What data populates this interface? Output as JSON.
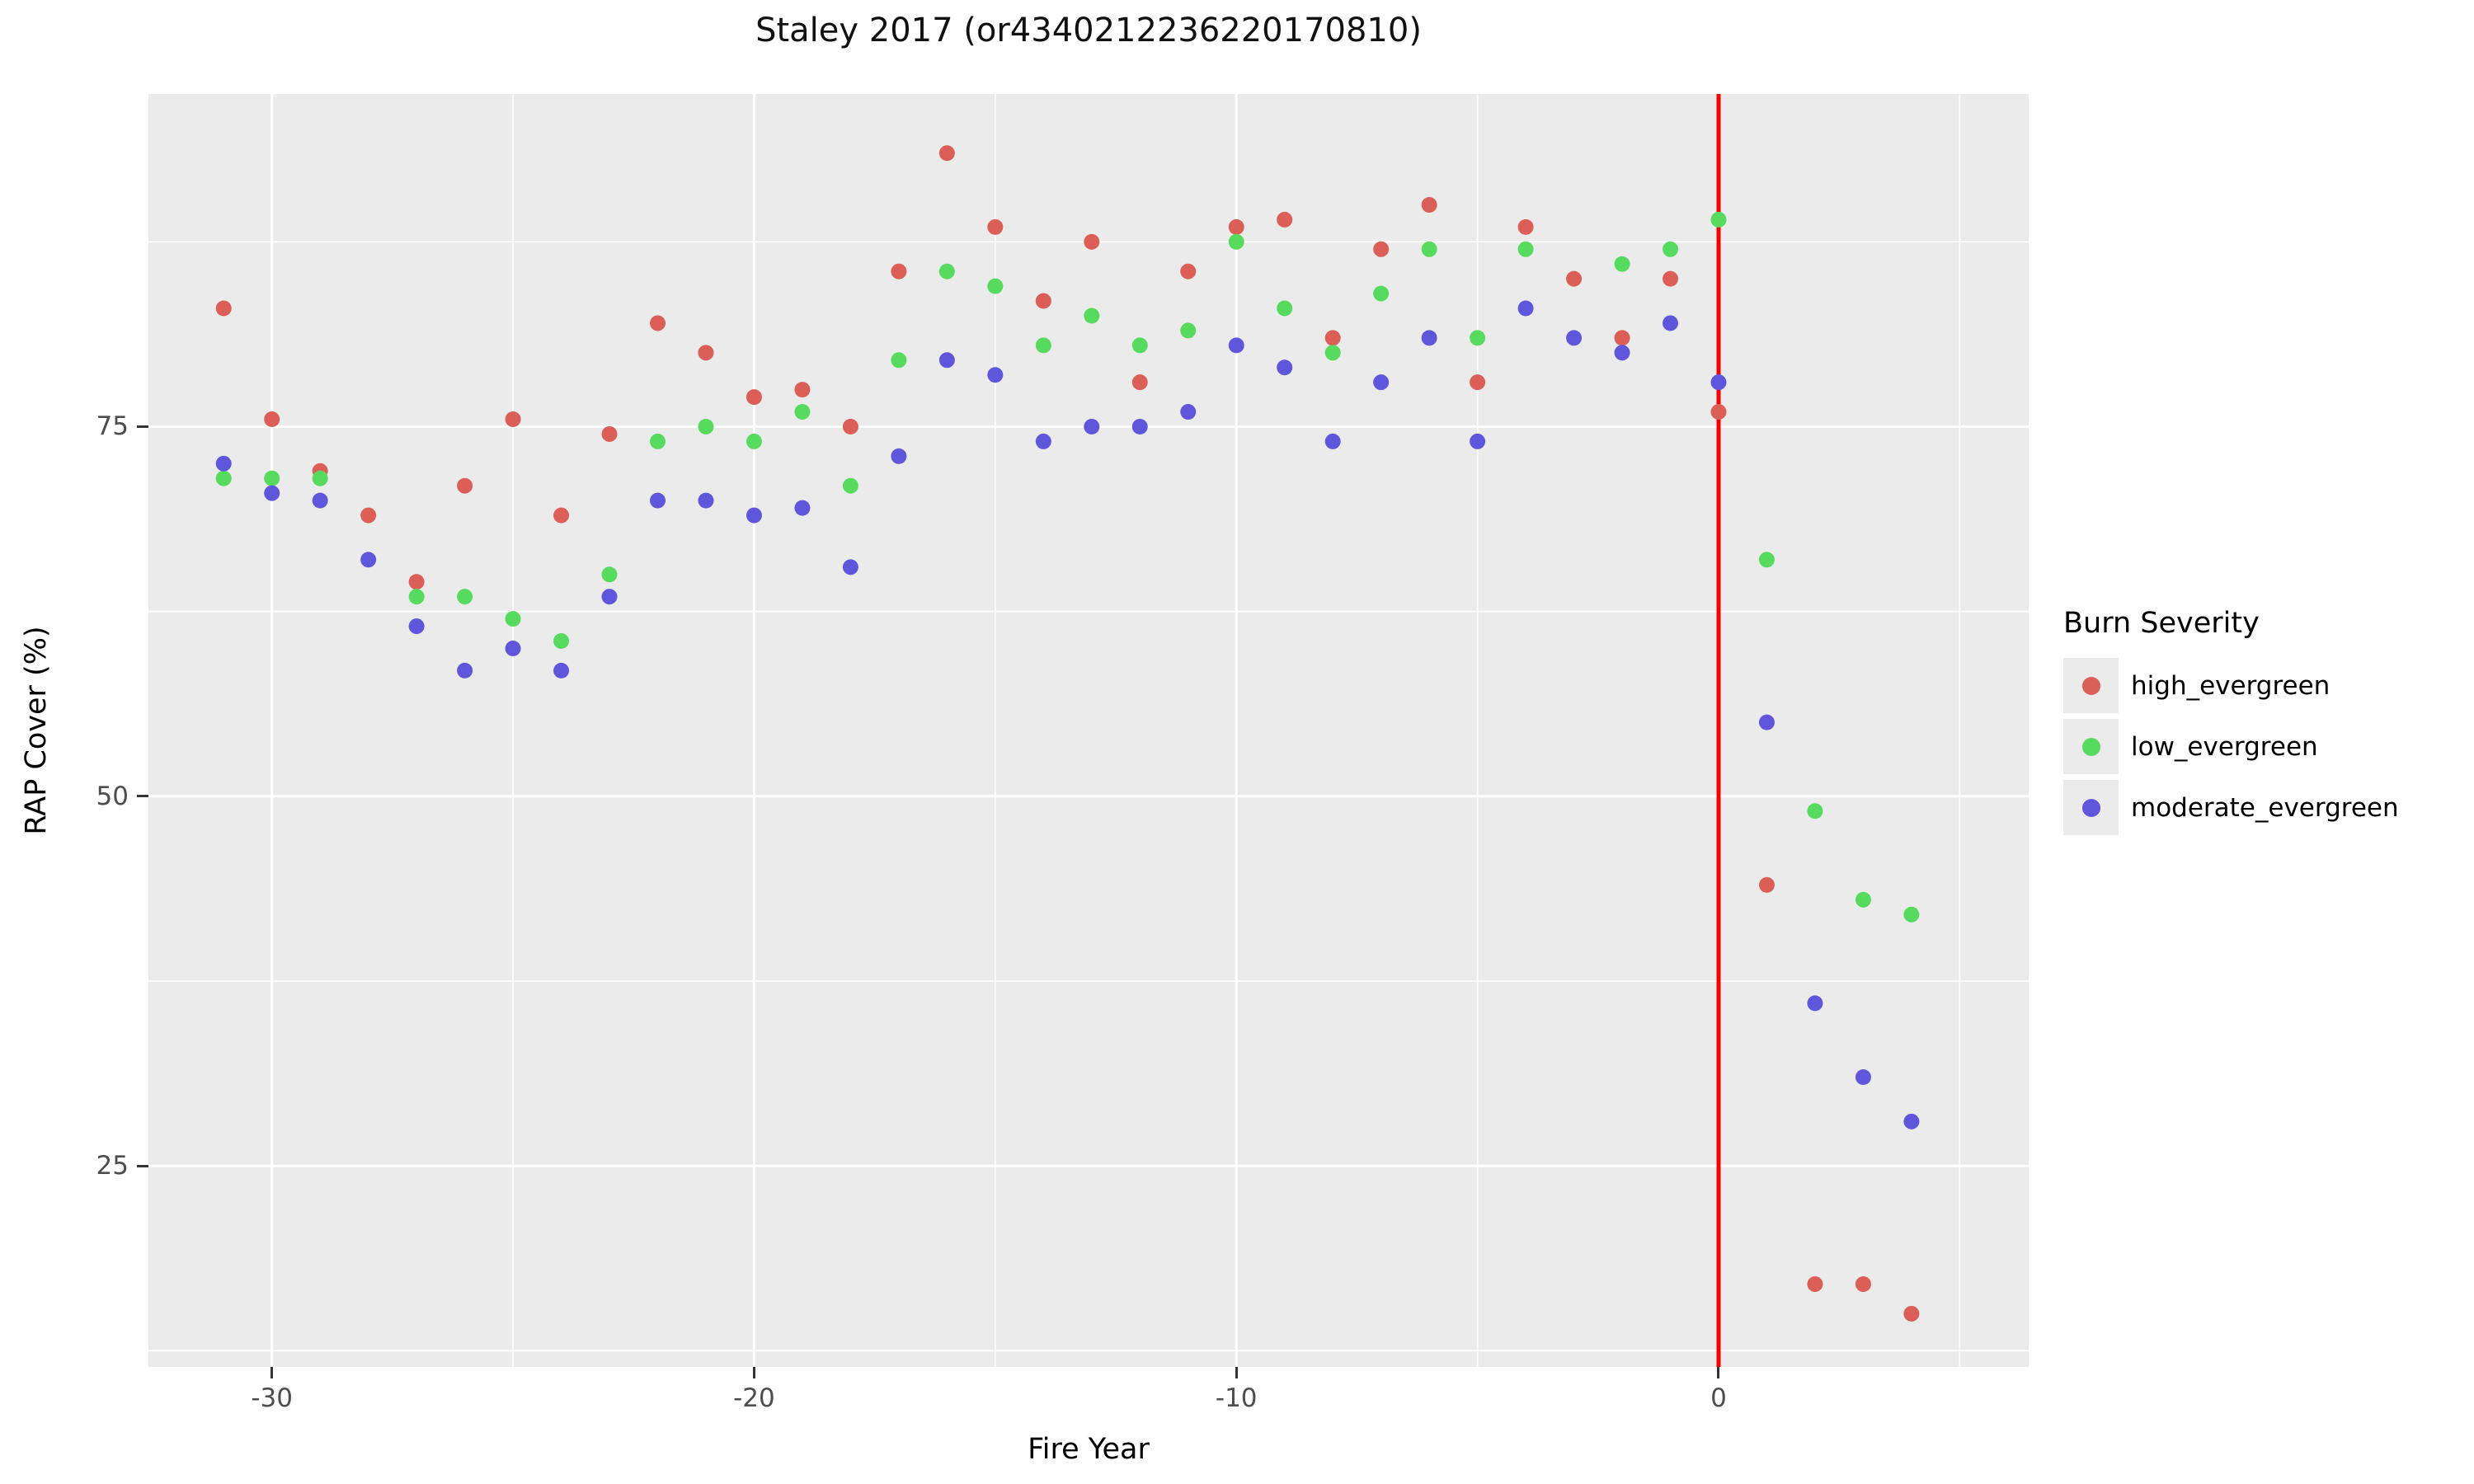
{
  "title": "Staley 2017 (or4340212236220170810)",
  "axes": {
    "xlabel": "Fire Year",
    "ylabel": "RAP Cover (%)"
  },
  "legend": {
    "title": "Burn Severity",
    "entries": [
      {
        "label": "high_evergreen",
        "color": "#db5f57"
      },
      {
        "label": "low_evergreen",
        "color": "#57db5f"
      },
      {
        "label": "moderate_evergreen",
        "color": "#5f57db"
      }
    ]
  },
  "colors": {
    "background": "#ffffff",
    "panel": "#ebebeb",
    "gridline": "#ffffff",
    "tick_mark": "#333333",
    "tick_label": "#4d4d4d",
    "fire_line": "#f40000"
  },
  "chart_data": {
    "type": "scatter",
    "title": "Staley 2017 (or4340212236220170810)",
    "xlabel": "Fire Year",
    "ylabel": "RAP Cover (%)",
    "xlim": [
      -32.56,
      6.43
    ],
    "ylim": [
      11.4,
      97.5
    ],
    "x_major_ticks": [
      -30,
      -20,
      -10,
      0
    ],
    "x_minor_gridlines": [
      -25,
      -15,
      -5,
      5
    ],
    "y_major_ticks": [
      75,
      50,
      25
    ],
    "y_minor_gridlines": [
      87.5,
      62.5,
      37.5,
      12.5
    ],
    "grid": "on",
    "legend_position": "right",
    "vline_x": 0,
    "point_radius_px": 9.5,
    "series": [
      {
        "name": "high_evergreen",
        "color": "#db5f57",
        "points": [
          [
            -31,
            83
          ],
          [
            -30,
            75.5
          ],
          [
            -29,
            72
          ],
          [
            -28,
            69
          ],
          [
            -27,
            64.5
          ],
          [
            -26,
            71
          ],
          [
            -25,
            75.5
          ],
          [
            -24,
            69
          ],
          [
            -23,
            74.5
          ],
          [
            -22,
            82
          ],
          [
            -21,
            80
          ],
          [
            -20,
            77
          ],
          [
            -19,
            77.5
          ],
          [
            -18,
            75
          ],
          [
            -17,
            85.5
          ],
          [
            -16,
            93.5
          ],
          [
            -15,
            88.5
          ],
          [
            -14,
            83.5
          ],
          [
            -13,
            87.5
          ],
          [
            -12,
            78
          ],
          [
            -11,
            85.5
          ],
          [
            -10,
            88.5
          ],
          [
            -9,
            89
          ],
          [
            -8,
            81
          ],
          [
            -7,
            87
          ],
          [
            -6,
            90
          ],
          [
            -5,
            78
          ],
          [
            -4,
            88.5
          ],
          [
            -3,
            85
          ],
          [
            -2,
            81
          ],
          [
            -1,
            85
          ],
          [
            0,
            76
          ],
          [
            1,
            44
          ],
          [
            2,
            17
          ],
          [
            3,
            17
          ],
          [
            4,
            15
          ]
        ]
      },
      {
        "name": "low_evergreen",
        "color": "#57db5f",
        "points": [
          [
            -31,
            71.5
          ],
          [
            -30,
            71.5
          ],
          [
            -29,
            71.5
          ],
          [
            -27,
            63.5
          ],
          [
            -26,
            63.5
          ],
          [
            -25,
            62
          ],
          [
            -24,
            60.5
          ],
          [
            -23,
            65
          ],
          [
            -22,
            74
          ],
          [
            -21,
            75
          ],
          [
            -20,
            74
          ],
          [
            -19,
            76
          ],
          [
            -18,
            71
          ],
          [
            -17,
            79.5
          ],
          [
            -16,
            85.5
          ],
          [
            -15,
            84.5
          ],
          [
            -14,
            80.5
          ],
          [
            -13,
            82.5
          ],
          [
            -12,
            80.5
          ],
          [
            -11,
            81.5
          ],
          [
            -10,
            87.5
          ],
          [
            -9,
            83
          ],
          [
            -8,
            80
          ],
          [
            -7,
            84
          ],
          [
            -6,
            87
          ],
          [
            -5,
            81
          ],
          [
            -4,
            87
          ],
          [
            -2,
            86
          ],
          [
            -1,
            87
          ],
          [
            0,
            89
          ],
          [
            1,
            66
          ],
          [
            2,
            49
          ],
          [
            3,
            43
          ],
          [
            4,
            42
          ]
        ]
      },
      {
        "name": "moderate_evergreen",
        "color": "#5f57db",
        "points": [
          [
            -31,
            72.5
          ],
          [
            -30,
            70.5
          ],
          [
            -29,
            70
          ],
          [
            -28,
            66
          ],
          [
            -27,
            61.5
          ],
          [
            -26,
            58.5
          ],
          [
            -25,
            60
          ],
          [
            -24,
            58.5
          ],
          [
            -23,
            63.5
          ],
          [
            -22,
            70
          ],
          [
            -21,
            70
          ],
          [
            -20,
            69
          ],
          [
            -19,
            69.5
          ],
          [
            -18,
            65.5
          ],
          [
            -17,
            73
          ],
          [
            -16,
            79.5
          ],
          [
            -15,
            78.5
          ],
          [
            -14,
            74
          ],
          [
            -13,
            75
          ],
          [
            -12,
            75
          ],
          [
            -11,
            76
          ],
          [
            -10,
            80.5
          ],
          [
            -9,
            79
          ],
          [
            -8,
            74
          ],
          [
            -7,
            78
          ],
          [
            -6,
            81
          ],
          [
            -5,
            74
          ],
          [
            -4,
            83
          ],
          [
            -3,
            81
          ],
          [
            -2,
            80
          ],
          [
            -1,
            82
          ],
          [
            0,
            78
          ],
          [
            1,
            55
          ],
          [
            2,
            36
          ],
          [
            3,
            31
          ],
          [
            4,
            28
          ]
        ]
      }
    ]
  }
}
